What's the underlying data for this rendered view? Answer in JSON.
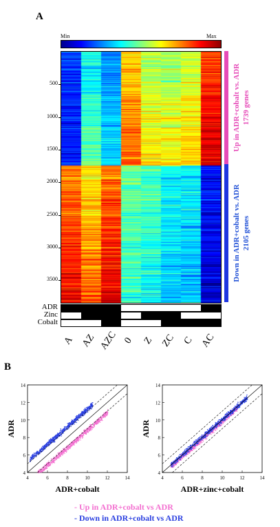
{
  "panel_a_label": "A",
  "panel_b_label": "B",
  "colorbar": {
    "min_label": "Min",
    "max_label": "Max"
  },
  "heatmap_colors": {
    "low": "#00008f",
    "high": "#8f0000"
  },
  "side_labels": {
    "up": {
      "line1": "Up in ADR+cobalt vs. ADR",
      "line2": "1739 genes",
      "color": "#e64bb8"
    },
    "down": {
      "line1": "Down in ADR+cobalt vs. ADR",
      "line2": "2105 genes",
      "color": "#1f4fd6"
    }
  },
  "treatments": [
    {
      "name": "ADR",
      "on": [
        1,
        1,
        1,
        0,
        0,
        0,
        0,
        1
      ]
    },
    {
      "name": "Zinc",
      "on": [
        0,
        1,
        1,
        0,
        1,
        1,
        0,
        0
      ]
    },
    {
      "name": "Cobalt",
      "on": [
        0,
        0,
        1,
        0,
        0,
        1,
        1,
        1
      ]
    }
  ],
  "scatter_legend": {
    "up": {
      "text": "- Up in ADR+cobalt vs ADR",
      "color": "#f36fd0"
    },
    "down": {
      "text": "- Down in ADR+cobalt vs ADR",
      "color": "#2a3fe0"
    }
  },
  "chart_data": [
    {
      "type": "heatmap",
      "columns": [
        "A",
        "AZ",
        "AZC",
        "0",
        "Z",
        "ZC",
        "C",
        "AC"
      ],
      "row_ticks": [
        500,
        1000,
        1500,
        2000,
        2500,
        3000,
        3500
      ],
      "n_rows": 3844,
      "groups": [
        {
          "name": "Up in ADR+cobalt vs. ADR",
          "rows": [
            1,
            1739
          ]
        },
        {
          "name": "Down in ADR+cobalt vs. ADR",
          "rows": [
            1740,
            3844
          ]
        }
      ],
      "group_column_levels": [
        {
          "group": "up",
          "levels": [
            0.15,
            0.42,
            0.3,
            0.72,
            0.6,
            0.58,
            0.62,
            0.86
          ]
        },
        {
          "group": "down",
          "levels": [
            0.82,
            0.72,
            0.84,
            0.45,
            0.42,
            0.36,
            0.34,
            0.12
          ]
        }
      ]
    },
    {
      "type": "scatter",
      "xlabel": "ADR+cobalt",
      "ylabel": "ADR",
      "xlim": [
        4,
        14
      ],
      "ylim": [
        4,
        14
      ],
      "xticks": [
        4,
        6,
        8,
        10,
        12,
        14
      ],
      "yticks": [
        4,
        6,
        8,
        10,
        12,
        14
      ],
      "series": [
        {
          "name": "Up in ADR+cobalt vs ADR",
          "color": "#f36fd0",
          "x_range": [
            4.8,
            12.0
          ],
          "y_offset": -1.1
        },
        {
          "name": "Down in ADR+cobalt vs ADR",
          "color": "#2a3fe0",
          "x_range": [
            4.2,
            10.5
          ],
          "y_offset": 1.3
        }
      ]
    },
    {
      "type": "scatter",
      "xlabel": "ADR+zinc+cobalt",
      "ylabel": "ADR",
      "xlim": [
        4,
        14
      ],
      "ylim": [
        4,
        14
      ],
      "xticks": [
        4,
        6,
        8,
        10,
        12,
        14
      ],
      "yticks": [
        4,
        6,
        8,
        10,
        12,
        14
      ],
      "series": [
        {
          "name": "Up in ADR+cobalt vs ADR",
          "color": "#f36fd0",
          "x_range": [
            4.8,
            11.5
          ],
          "y_offset": -0.1
        },
        {
          "name": "Down in ADR+cobalt vs ADR",
          "color": "#2a3fe0",
          "x_range": [
            4.8,
            12.5
          ],
          "y_offset": 0.1
        }
      ]
    }
  ]
}
